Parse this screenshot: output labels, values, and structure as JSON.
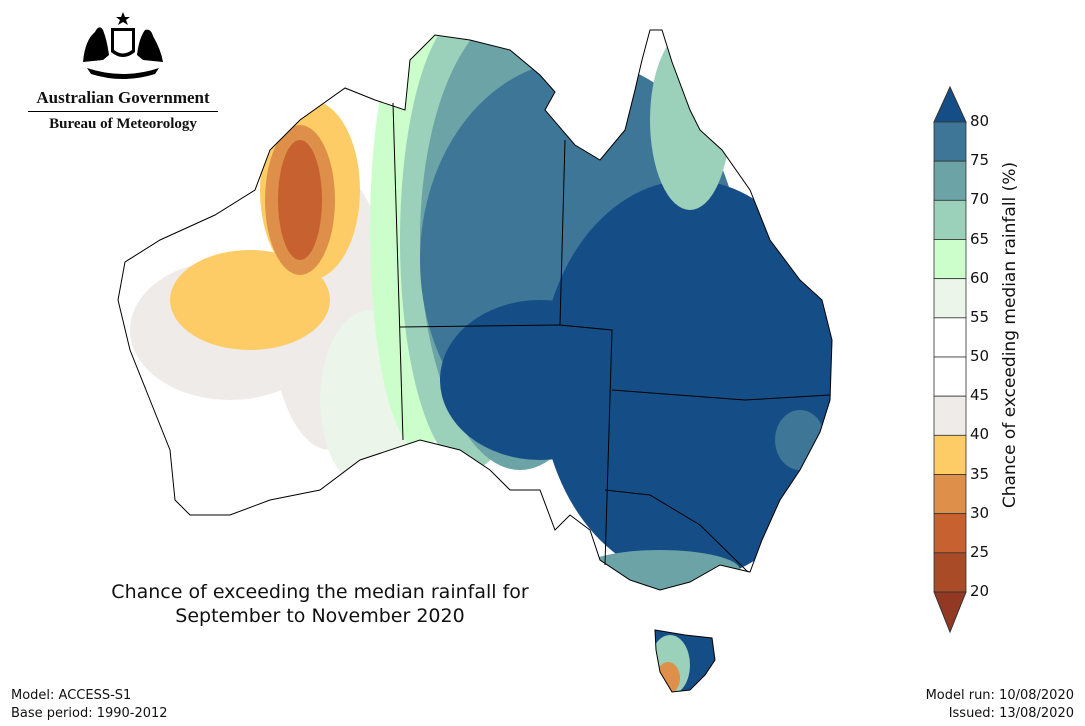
{
  "logo": {
    "government": "Australian Government",
    "bureau": "Bureau of Meteorology"
  },
  "map": {
    "title_line1": "Chance of exceeding the median rainfall for",
    "title_line2": "September to November 2020"
  },
  "footer": {
    "model": "Model: ACCESS-S1",
    "base_period": "Base period: 1990-2012",
    "model_run": "Model run: 10/08/2020",
    "issued": "Issued: 13/08/2020"
  },
  "colorbar": {
    "label": "Chance of exceeding median rainfall (%)",
    "ticks": [
      "80",
      "75",
      "70",
      "65",
      "60",
      "55",
      "50",
      "45",
      "40",
      "35",
      "30",
      "25",
      "20"
    ],
    "colors": {
      "above80": "#154e87",
      "c75_80": "#3d7696",
      "c70_75": "#6ba3a6",
      "c65_70": "#9bd0bb",
      "c60_65": "#ccfecc",
      "c55_60": "#ebf5ea",
      "c50_55": "#ffffff",
      "c45_50": "#ffffff",
      "c40_45": "#efebe8",
      "c35_40": "#fecc66",
      "c30_35": "#de8f4a",
      "c25_30": "#c7612f",
      "c20_25": "#aa4b27",
      "below20": "#923823"
    }
  }
}
